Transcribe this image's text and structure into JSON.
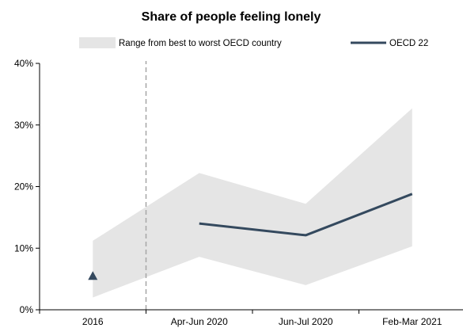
{
  "chart_data": {
    "type": "area",
    "title": "Share of people feeling lonely",
    "categories": [
      "2016",
      "Apr-Jun 2020",
      "Jun-Jul 2020",
      "Feb-Mar 2021"
    ],
    "y_axis": {
      "min": 0,
      "max": 40,
      "ticks": [
        0,
        10,
        20,
        30,
        40
      ],
      "tick_labels": [
        "0%",
        "10%",
        "20%",
        "30%",
        "40%"
      ]
    },
    "band": {
      "name": "Range from best to worst OECD country",
      "color": "#e5e5e5",
      "lower": [
        2,
        8.6,
        4,
        10.3
      ],
      "upper": [
        11.2,
        22.2,
        17.2,
        32.7
      ]
    },
    "series": [
      {
        "name": "OECD 22",
        "color": "#34495e",
        "values": [
          null,
          14,
          12.1,
          18.8
        ]
      }
    ],
    "markers": [
      {
        "category": "2016",
        "value": 5.5,
        "shape": "triangle",
        "color": "#34495e"
      }
    ],
    "divider_after_category": "2016",
    "grid": false,
    "legend_position": "top"
  }
}
